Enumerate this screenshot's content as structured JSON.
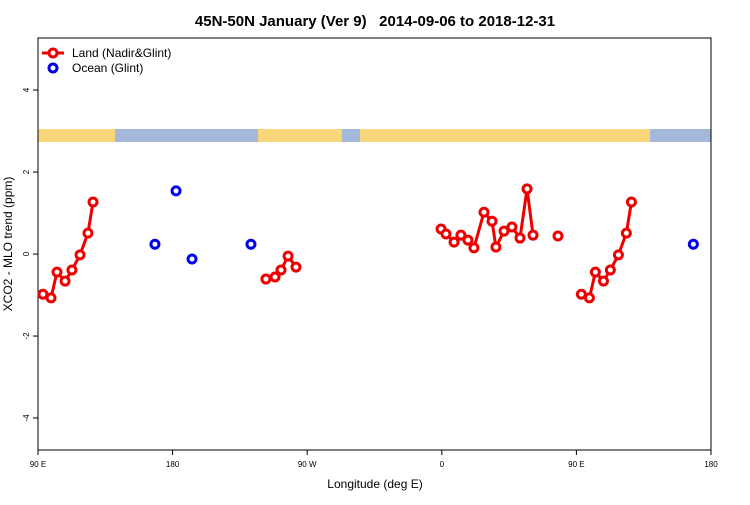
{
  "chart_data": {
    "type": "line",
    "title": "45N-50N January (Ver 9)   2014-09-06 to 2018-12-31",
    "xlabel": "Longitude (deg E)",
    "ylabel": "XCO2 - MLO trend (ppm)",
    "xlim": [
      90,
      540
    ],
    "ylim": [
      -4.78,
      5.27
    ],
    "xticks": [
      {
        "value": 90,
        "label": "90 E"
      },
      180,
      {
        "value": 270,
        "label": "90 W"
      },
      {
        "value": 360,
        "label": "0"
      },
      {
        "value": 450,
        "label": "90 E"
      },
      {
        "value": 540,
        "label": "180"
      }
    ],
    "yticks": [
      -4,
      -2,
      0,
      2,
      4
    ],
    "legend": "upper left",
    "series": [
      {
        "name": "Land (Nadir&Glint)",
        "color": "#ee0000",
        "line": true,
        "x": [
          93.3,
          98.7,
          102.7,
          108.1,
          112.7,
          118.1,
          123.4,
          126.8,
          null,
          242.4,
          248.5,
          252.5,
          257.2,
          262.5,
          null,
          359.5,
          362.8,
          368.2,
          372.8,
          377.5,
          381.5,
          388.2,
          393.6,
          396.2,
          401.6,
          406.9,
          412.3,
          417,
          421,
          null,
          437.7,
          null,
          453.3,
          458.7,
          462.7,
          468.1,
          472.7,
          478.1,
          483.4,
          486.8
        ],
        "values": [
          -0.98,
          -1.07,
          -0.44,
          -0.66,
          -0.39,
          -0.02,
          0.51,
          1.27,
          null,
          -0.61,
          -0.56,
          -0.39,
          -0.05,
          -0.32,
          null,
          0.61,
          0.49,
          0.29,
          0.46,
          0.34,
          0.15,
          1.02,
          0.8,
          0.17,
          0.56,
          0.66,
          0.39,
          1.59,
          0.46,
          null,
          0.44,
          null,
          -0.98,
          -1.07,
          -0.44,
          -0.66,
          -0.39,
          -0.02,
          0.51,
          1.27
        ]
      },
      {
        "name": "Ocean (Glint)",
        "color": "#0000ee",
        "line": false,
        "x": [
          168.2,
          182.3,
          193,
          232.4,
          528.2
        ],
        "values": [
          0.24,
          1.54,
          -0.12,
          0.24,
          0.24
        ]
      }
    ]
  }
}
